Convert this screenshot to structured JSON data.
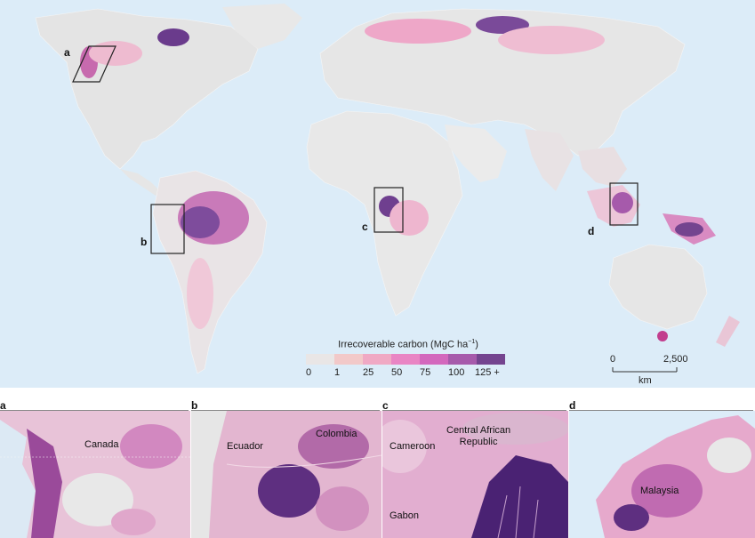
{
  "legend": {
    "title": "Irrecoverable carbon (MgC ha",
    "title_sup": "−1",
    "title_end": ")",
    "ticks": [
      "0",
      "1",
      "25",
      "50",
      "75",
      "100",
      "125 +"
    ],
    "colors": [
      "#e9e6e6",
      "#f2c9c9",
      "#f0a9c4",
      "#e985c4",
      "#d368bd",
      "#a65aab",
      "#74448f"
    ]
  },
  "scale": {
    "zero": "0",
    "max": "2,500",
    "unit": "km"
  },
  "map_labels": {
    "a": "a",
    "b": "b",
    "c": "c",
    "d": "d"
  },
  "panels": {
    "a": {
      "letter": "a",
      "places": [
        "Canada"
      ]
    },
    "b": {
      "letter": "b",
      "places": [
        "Ecuador",
        "Colombia"
      ]
    },
    "c": {
      "letter": "c",
      "places": [
        "Cameroon",
        "Central African\nRepublic",
        "Gabon"
      ]
    },
    "d": {
      "letter": "d",
      "places": [
        "Malaysia"
      ]
    }
  },
  "colors": {
    "ocean": "#dcecf8",
    "land_low": "#e6e6e6",
    "land_mid": "#eeb6cf",
    "land_high": "#6a3b8c"
  }
}
